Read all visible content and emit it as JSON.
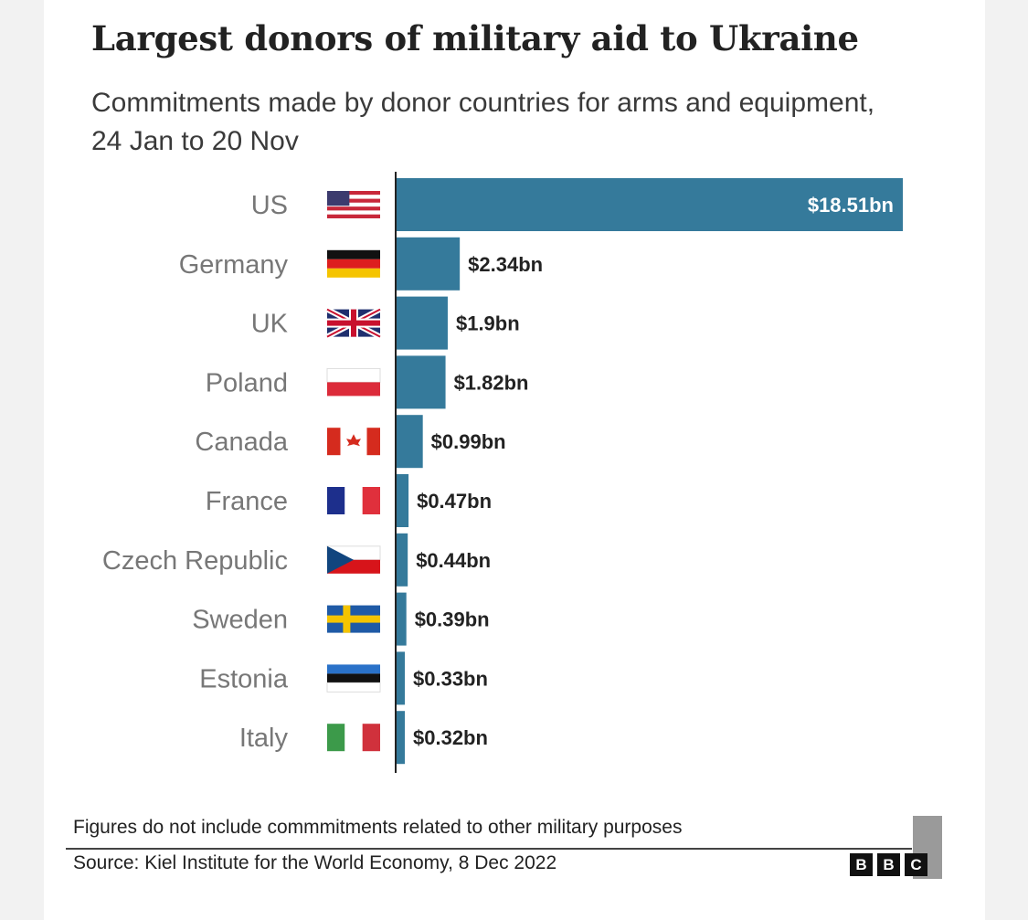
{
  "title": "Largest donors of military aid to Ukraine",
  "subtitle": "Commitments made by donor countries for arms and equipment, 24 Jan to 20 Nov",
  "note": "Figures do not include commmitments related to other military purposes",
  "source": "Source: Kiel Institute for the World Economy, 8 Dec 2022",
  "logo": [
    "B",
    "B",
    "C"
  ],
  "colors": {
    "bar": "#357a9b",
    "label": "#777777",
    "value": "#222222",
    "value_inside": "#ffffff"
  },
  "chart_data": {
    "type": "bar",
    "orientation": "horizontal",
    "title": "Largest donors of military aid to Ukraine",
    "unit": "$bn",
    "categories": [
      "US",
      "Germany",
      "UK",
      "Poland",
      "Canada",
      "France",
      "Czech Republic",
      "Sweden",
      "Estonia",
      "Italy"
    ],
    "values": [
      18.51,
      2.34,
      1.9,
      1.82,
      0.99,
      0.47,
      0.44,
      0.39,
      0.33,
      0.32
    ],
    "value_labels": [
      "$18.51bn",
      "$2.34bn",
      "$1.9bn",
      "$1.82bn",
      "$0.99bn",
      "$0.47bn",
      "$0.44bn",
      "$0.39bn",
      "$0.33bn",
      "$0.32bn"
    ],
    "flags": [
      "us-flag",
      "germany-flag",
      "uk-flag",
      "poland-flag",
      "canada-flag",
      "france-flag",
      "czech-flag",
      "sweden-flag",
      "estonia-flag",
      "italy-flag"
    ],
    "xlim": [
      0,
      18.51
    ],
    "grid": false,
    "legend": "none"
  }
}
